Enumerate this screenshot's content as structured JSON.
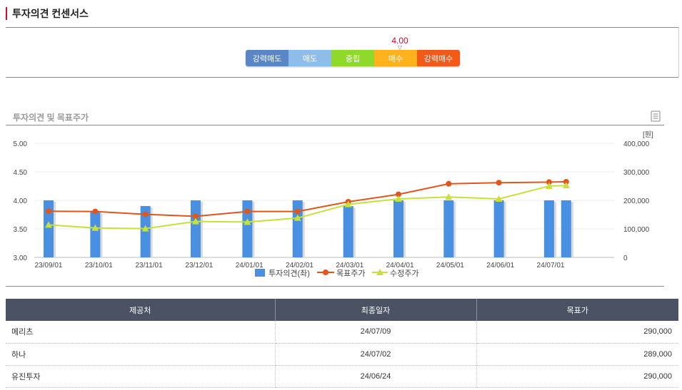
{
  "section": {
    "title": "투자의견 컨센서스"
  },
  "consensus": {
    "score": "4.00",
    "segments": [
      {
        "label": "강력매도",
        "color": "#5a86c5"
      },
      {
        "label": "매도",
        "color": "#8fbde9"
      },
      {
        "label": "중립",
        "color": "#8fd92b"
      },
      {
        "label": "매수",
        "color": "#ffb21c"
      },
      {
        "label": "강력매수",
        "color": "#f25a18"
      }
    ]
  },
  "chart_section": {
    "title": "투자의견 및 목표주가"
  },
  "chart_data": {
    "type": "bar+line",
    "categories": [
      "23/09/01",
      "23/10/01",
      "23/11/01",
      "23/12/01",
      "24/01/01",
      "24/02/01",
      "24/03/01",
      "24/04/01",
      "24/05/01",
      "24/06/01",
      "24/07/01"
    ],
    "left_axis": {
      "ticks": [
        "5.00",
        "4.50",
        "4.00",
        "3.50",
        "3.00"
      ],
      "range": [
        3.0,
        5.0
      ]
    },
    "right_axis": {
      "unit": "[원]",
      "ticks": [
        "400,000",
        "300,000",
        "200,000",
        "100,000",
        "0"
      ],
      "range": [
        0,
        400000
      ]
    },
    "bars": {
      "name": "투자의견(좌)",
      "color": "#4a90e2",
      "x": [
        0.0,
        0.93,
        1.93,
        2.93,
        3.96,
        4.96,
        5.97,
        6.97,
        7.97,
        8.97,
        9.97,
        10.31
      ],
      "values": [
        4.0,
        3.8,
        3.9,
        4.0,
        4.0,
        4.0,
        3.9,
        4.0,
        4.0,
        4.0,
        4.0,
        4.0
      ]
    },
    "series": [
      {
        "name": "목표주가",
        "color": "#e0561b",
        "x": [
          0.0,
          0.93,
          1.93,
          2.93,
          3.96,
          4.96,
          5.97,
          6.97,
          7.97,
          8.97,
          9.97,
          10.31
        ],
        "values": [
          162000,
          161000,
          151000,
          144000,
          161000,
          161000,
          195000,
          221000,
          258000,
          262000,
          264000,
          265000
        ]
      },
      {
        "name": "수정주가",
        "color": "#c8e03a",
        "x": [
          0.0,
          0.93,
          1.93,
          2.93,
          3.96,
          4.96,
          5.97,
          6.97,
          7.97,
          8.97,
          9.97,
          10.31
        ],
        "values": [
          114000,
          103000,
          101000,
          126000,
          124000,
          138000,
          186000,
          205000,
          212000,
          205000,
          250000,
          252000
        ]
      }
    ]
  },
  "table": {
    "headers": [
      "제공처",
      "최종일자",
      "목표가"
    ],
    "rows": [
      [
        "메리츠",
        "24/07/09",
        "290,000"
      ],
      [
        "하나",
        "24/07/02",
        "289,000"
      ],
      [
        "유진투자",
        "24/06/24",
        "290,000"
      ]
    ]
  }
}
